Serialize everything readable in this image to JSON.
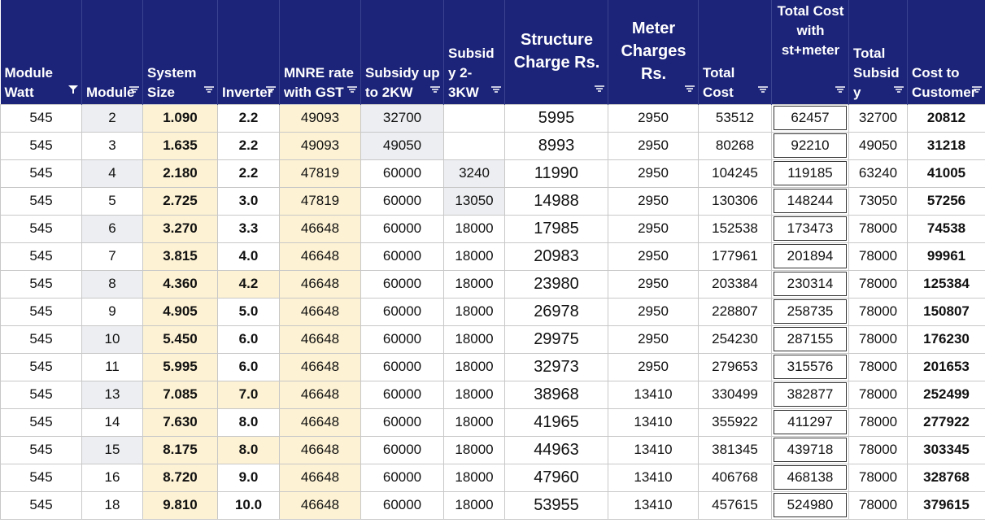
{
  "table": {
    "headers": [
      "Module Watt",
      "Module",
      "System Size",
      "Inverter",
      "MNRE rate with GST",
      "Subsidy up to 2KW",
      "Subsidy 2-3KW",
      "Structure Charge Rs.",
      "Meter Charges Rs.",
      "Total Cost",
      "Total Cost with st+meter",
      "Total Subsidy",
      "Cost to Customer"
    ],
    "rows": [
      [
        "545",
        "2",
        "1.090",
        "2.2",
        "49093",
        "32700",
        null,
        "5995",
        "2950",
        "53512",
        "62457",
        "32700",
        "20812"
      ],
      [
        "545",
        "3",
        "1.635",
        "2.2",
        "49093",
        "49050",
        null,
        "8993",
        "2950",
        "80268",
        "92210",
        "49050",
        "31218"
      ],
      [
        "545",
        "4",
        "2.180",
        "2.2",
        "47819",
        "60000",
        "3240",
        "11990",
        "2950",
        "104245",
        "119185",
        "63240",
        "41005"
      ],
      [
        "545",
        "5",
        "2.725",
        "3.0",
        "47819",
        "60000",
        "13050",
        "14988",
        "2950",
        "130306",
        "148244",
        "73050",
        "57256"
      ],
      [
        "545",
        "6",
        "3.270",
        "3.3",
        "46648",
        "60000",
        "18000",
        "17985",
        "2950",
        "152538",
        "173473",
        "78000",
        "74538"
      ],
      [
        "545",
        "7",
        "3.815",
        "4.0",
        "46648",
        "60000",
        "18000",
        "20983",
        "2950",
        "177961",
        "201894",
        "78000",
        "99961"
      ],
      [
        "545",
        "8",
        "4.360",
        "4.2",
        "46648",
        "60000",
        "18000",
        "23980",
        "2950",
        "203384",
        "230314",
        "78000",
        "125384"
      ],
      [
        "545",
        "9",
        "4.905",
        "5.0",
        "46648",
        "60000",
        "18000",
        "26978",
        "2950",
        "228807",
        "258735",
        "78000",
        "150807"
      ],
      [
        "545",
        "10",
        "5.450",
        "6.0",
        "46648",
        "60000",
        "18000",
        "29975",
        "2950",
        "254230",
        "287155",
        "78000",
        "176230"
      ],
      [
        "545",
        "11",
        "5.995",
        "6.0",
        "46648",
        "60000",
        "18000",
        "32973",
        "2950",
        "279653",
        "315576",
        "78000",
        "201653"
      ],
      [
        "545",
        "13",
        "7.085",
        "7.0",
        "46648",
        "60000",
        "18000",
        "38968",
        "13410",
        "330499",
        "382877",
        "78000",
        "252499"
      ],
      [
        "545",
        "14",
        "7.630",
        "8.0",
        "46648",
        "60000",
        "18000",
        "41965",
        "13410",
        "355922",
        "411297",
        "78000",
        "277922"
      ],
      [
        "545",
        "15",
        "8.175",
        "8.0",
        "46648",
        "60000",
        "18000",
        "44963",
        "13410",
        "381345",
        "439718",
        "78000",
        "303345"
      ],
      [
        "545",
        "16",
        "8.720",
        "9.0",
        "46648",
        "60000",
        "18000",
        "47960",
        "13410",
        "406768",
        "468138",
        "78000",
        "328768"
      ],
      [
        "545",
        "18",
        "9.810",
        "10.0",
        "46648",
        "60000",
        "18000",
        "53955",
        "13410",
        "457615",
        "524980",
        "78000",
        "379615"
      ]
    ]
  }
}
